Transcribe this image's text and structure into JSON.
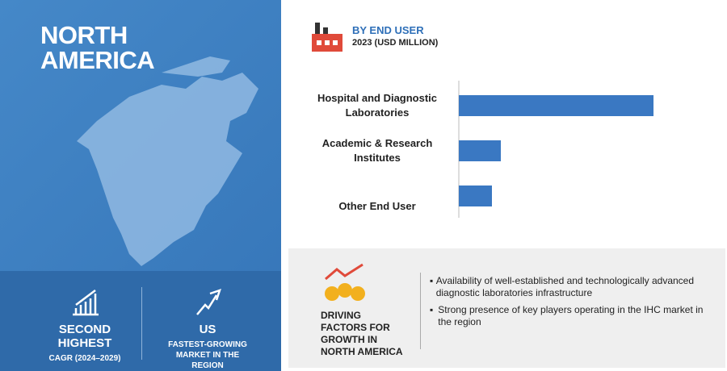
{
  "region": {
    "title_lines": [
      "NORTH",
      "AMERICA"
    ]
  },
  "stats": [
    {
      "headline_lines": [
        "SECOND",
        "HIGHEST"
      ],
      "caption": "CAGR (2024–2029)"
    },
    {
      "headline_lines": [
        "US"
      ],
      "caption": "FASTEST-GROWING MARKET IN THE REGION"
    }
  ],
  "chart_data": {
    "type": "bar",
    "orientation": "horizontal",
    "title": "BY END USER",
    "subtitle": "2023 (USD MILLION)",
    "categories": [
      "Hospital and Diagnostic Laboratories",
      "Academic & Research Institutes",
      "Other End User"
    ],
    "values": [
      241,
      52,
      41
    ],
    "color": "#3a78c2"
  },
  "drivers": {
    "title": "DRIVING FACTORS FOR GROWTH IN NORTH AMERICA",
    "items": [
      "Availability of well-established and technologically advanced diagnostic laboratories infrastructure",
      "Strong presence of key players operating in the IHC market in the region"
    ]
  }
}
